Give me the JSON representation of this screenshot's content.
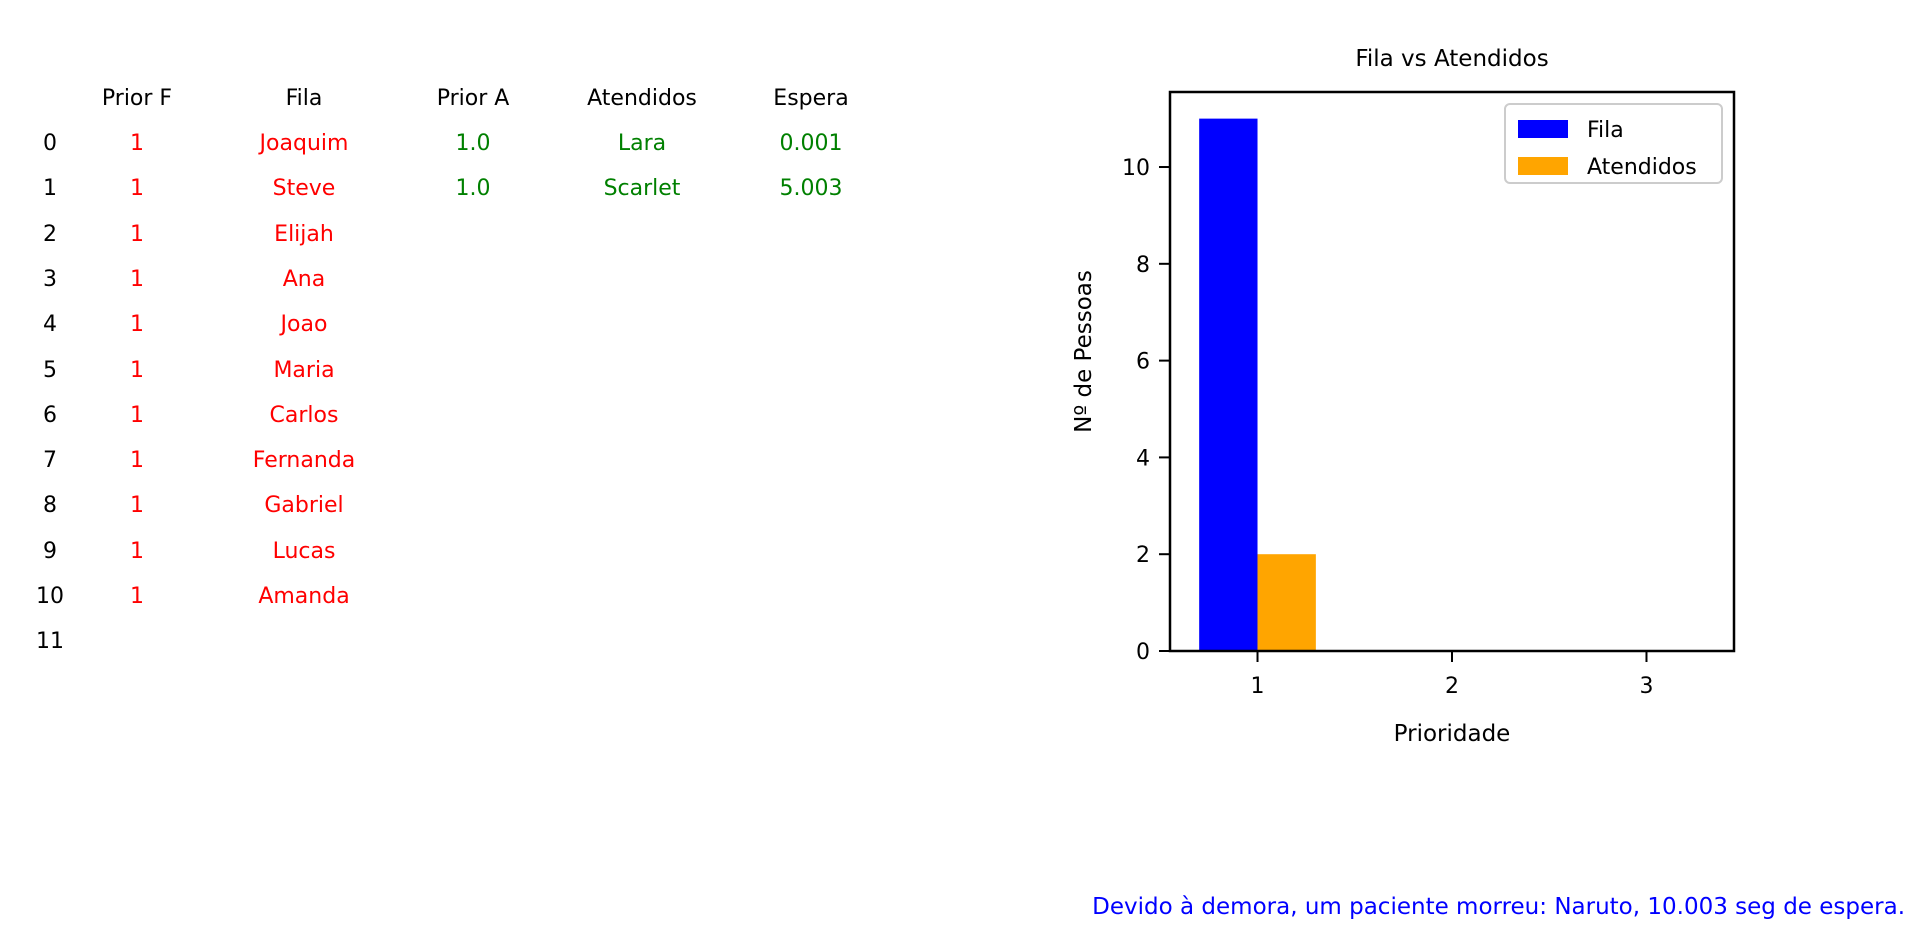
{
  "table": {
    "headers": [
      "Prior F",
      "Fila",
      "Prior A",
      "Atendidos",
      "Espera"
    ],
    "rows": [
      {
        "index": "0",
        "prior_f": "1",
        "fila": "Joaquim",
        "prior_a": "1.0",
        "atendido": "Lara",
        "espera": "0.001"
      },
      {
        "index": "1",
        "prior_f": "1",
        "fila": "Steve",
        "prior_a": "1.0",
        "atendido": "Scarlet",
        "espera": "5.003"
      },
      {
        "index": "2",
        "prior_f": "1",
        "fila": "Elijah",
        "prior_a": "",
        "atendido": "",
        "espera": ""
      },
      {
        "index": "3",
        "prior_f": "1",
        "fila": "Ana",
        "prior_a": "",
        "atendido": "",
        "espera": ""
      },
      {
        "index": "4",
        "prior_f": "1",
        "fila": "Joao",
        "prior_a": "",
        "atendido": "",
        "espera": ""
      },
      {
        "index": "5",
        "prior_f": "1",
        "fila": "Maria",
        "prior_a": "",
        "atendido": "",
        "espera": ""
      },
      {
        "index": "6",
        "prior_f": "1",
        "fila": "Carlos",
        "prior_a": "",
        "atendido": "",
        "espera": ""
      },
      {
        "index": "7",
        "prior_f": "1",
        "fila": "Fernanda",
        "prior_a": "",
        "atendido": "",
        "espera": ""
      },
      {
        "index": "8",
        "prior_f": "1",
        "fila": "Gabriel",
        "prior_a": "",
        "atendido": "",
        "espera": ""
      },
      {
        "index": "9",
        "prior_f": "1",
        "fila": "Lucas",
        "prior_a": "",
        "atendido": "",
        "espera": ""
      },
      {
        "index": "10",
        "prior_f": "1",
        "fila": "Amanda",
        "prior_a": "",
        "atendido": "",
        "espera": ""
      },
      {
        "index": "11",
        "prior_f": "",
        "fila": "",
        "prior_a": "",
        "atendido": "",
        "espera": ""
      }
    ],
    "colors": {
      "fila": "#ff0000",
      "atendidos": "#008000",
      "header": "#000000"
    }
  },
  "chart_data": {
    "type": "bar",
    "title": "Fila vs Atendidos",
    "xlabel": "Prioridade",
    "ylabel": "Nº de Pessoas",
    "categories": [
      "1",
      "2",
      "3"
    ],
    "series": [
      {
        "name": "Fila",
        "values": [
          11,
          0,
          0
        ],
        "color": "#0000ff"
      },
      {
        "name": "Atendidos",
        "values": [
          2,
          0,
          0
        ],
        "color": "#ffa500"
      }
    ],
    "yticks": [
      "0",
      "2",
      "4",
      "6",
      "8",
      "10"
    ],
    "ylim": [
      0,
      11.55
    ],
    "xlim": [
      0.55,
      3.45
    ],
    "grid": false,
    "legend": "top-right"
  },
  "message": {
    "text": "Devido à demora, um paciente morreu: Naruto, 10.003 seg de espera.",
    "color": "#0000ff"
  }
}
